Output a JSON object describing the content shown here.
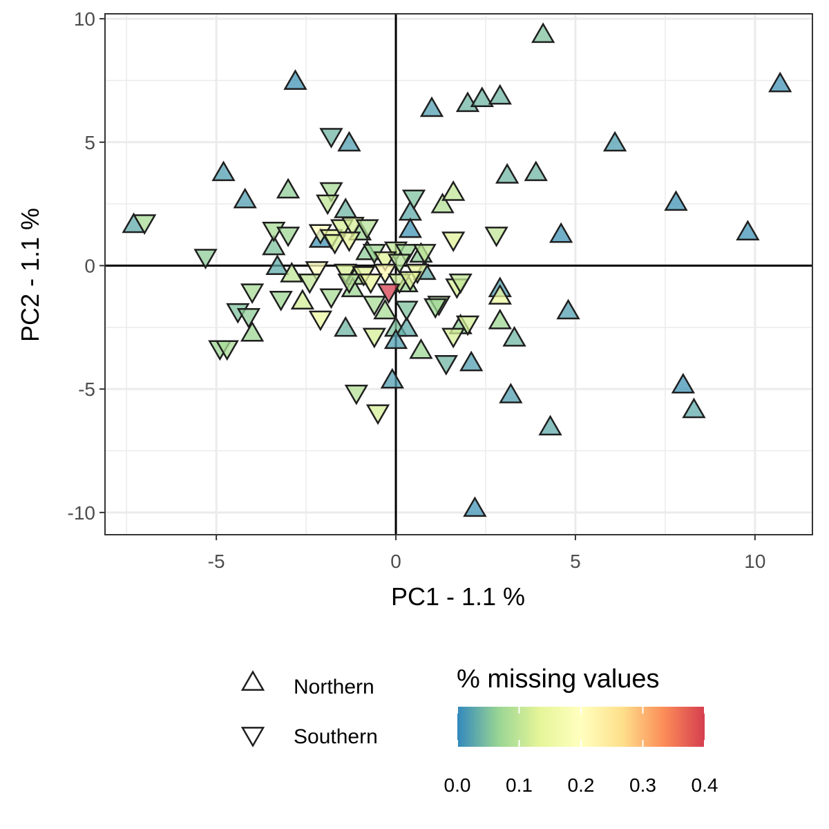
{
  "chart_data": {
    "type": "scatter",
    "xlabel": "PC1 - 1.1 %",
    "ylabel": "PC2 - 1.1 %",
    "xlim": [
      -8.1,
      11.6
    ],
    "ylim": [
      -10.9,
      10.2
    ],
    "x_ticks": [
      -5,
      0,
      5,
      10
    ],
    "y_ticks": [
      10,
      5,
      0,
      -5,
      -10
    ],
    "x_tick_labels": [
      "-5",
      "0",
      "5",
      "10"
    ],
    "y_tick_labels": [
      "10",
      "5",
      "0",
      "-5",
      "-10"
    ],
    "grid": true,
    "reference_lines": [
      {
        "axis": "x",
        "value": 0
      },
      {
        "axis": "y",
        "value": 0
      }
    ],
    "legend": {
      "placement": "bottom",
      "shape_entries": [
        {
          "label": "Northern",
          "shape": "triangle-up"
        },
        {
          "label": "Southern",
          "shape": "triangle-down"
        }
      ],
      "color_title": "% missing values",
      "color_ticks": [
        0.0,
        0.1,
        0.2,
        0.3,
        0.4
      ],
      "color_tick_labels": [
        "0.0",
        "0.1",
        "0.2",
        "0.3",
        "0.4"
      ],
      "color_range": [
        0.0,
        0.4
      ],
      "colors": [
        "#3288bd",
        "#99d594",
        "#e6f598",
        "#ffffbf",
        "#fee08b",
        "#fc8d59",
        "#d53e4f"
      ]
    },
    "series": [
      {
        "name": "Northern",
        "shape": "triangle-up",
        "points": [
          [
            4.1,
            9.3,
            0.05
          ],
          [
            10.7,
            7.3,
            0.01
          ],
          [
            -2.8,
            7.4,
            0.01
          ],
          [
            1.0,
            6.3,
            0.02
          ],
          [
            2.0,
            6.5,
            0.04
          ],
          [
            2.4,
            6.7,
            0.04
          ],
          [
            2.9,
            6.8,
            0.04
          ],
          [
            6.1,
            4.9,
            0.02
          ],
          [
            -1.3,
            4.9,
            0.02
          ],
          [
            -4.8,
            3.7,
            0.02
          ],
          [
            3.1,
            3.6,
            0.04
          ],
          [
            3.9,
            3.7,
            0.04
          ],
          [
            -3.0,
            3.0,
            0.06
          ],
          [
            -4.2,
            2.6,
            0.02
          ],
          [
            7.8,
            2.5,
            0.01
          ],
          [
            1.3,
            2.4,
            0.09
          ],
          [
            1.6,
            2.9,
            0.1
          ],
          [
            -1.4,
            2.2,
            0.04
          ],
          [
            0.4,
            2.1,
            0.03
          ],
          [
            9.8,
            1.3,
            0.01
          ],
          [
            4.6,
            1.2,
            0.01
          ],
          [
            -7.3,
            1.6,
            0.03
          ],
          [
            0.4,
            1.4,
            0.01
          ],
          [
            -2.1,
            1.0,
            0.01
          ],
          [
            -1.0,
            1.3,
            0.07
          ],
          [
            -3.4,
            0.7,
            0.05
          ],
          [
            -0.8,
            0.5,
            0.06
          ],
          [
            0.7,
            0.4,
            0.06
          ],
          [
            -3.3,
            -0.1,
            0.03
          ],
          [
            -2.9,
            -0.4,
            0.1
          ],
          [
            -1.1,
            -0.5,
            0.08
          ],
          [
            0.8,
            -0.3,
            0.03
          ],
          [
            0.3,
            -0.8,
            0.07
          ],
          [
            2.9,
            -1.0,
            0.02
          ],
          [
            -1.2,
            -1.0,
            0.07
          ],
          [
            2.9,
            -1.3,
            0.15
          ],
          [
            4.8,
            -1.9,
            0.02
          ],
          [
            -2.6,
            -1.5,
            0.12
          ],
          [
            -4.0,
            -2.8,
            0.07
          ],
          [
            -1.4,
            -2.6,
            0.04
          ],
          [
            -0.3,
            -1.9,
            0.08
          ],
          [
            0.0,
            -2.6,
            0.05
          ],
          [
            0.3,
            -2.6,
            0.03
          ],
          [
            1.8,
            -2.5,
            0.06
          ],
          [
            2.9,
            -2.3,
            0.07
          ],
          [
            3.3,
            -3.0,
            0.04
          ],
          [
            0.7,
            -3.5,
            0.07
          ],
          [
            0.0,
            -3.1,
            0.02
          ],
          [
            2.1,
            -4.0,
            0.02
          ],
          [
            -0.1,
            -4.7,
            0.02
          ],
          [
            3.2,
            -5.3,
            0.02
          ],
          [
            8.0,
            -4.9,
            0.01
          ],
          [
            8.3,
            -5.9,
            0.03
          ],
          [
            4.3,
            -6.6,
            0.03
          ],
          [
            2.2,
            -9.9,
            0.01
          ]
        ]
      },
      {
        "name": "Southern",
        "shape": "triangle-down",
        "points": [
          [
            -1.8,
            5.3,
            0.04
          ],
          [
            -1.8,
            3.1,
            0.08
          ],
          [
            -1.9,
            2.6,
            0.1
          ],
          [
            0.5,
            2.8,
            0.05
          ],
          [
            -7.0,
            1.8,
            0.08
          ],
          [
            -3.4,
            1.5,
            0.08
          ],
          [
            -3.0,
            1.3,
            0.07
          ],
          [
            -2.1,
            1.4,
            0.2
          ],
          [
            -1.8,
            1.2,
            0.14
          ],
          [
            -1.5,
            1.6,
            0.12
          ],
          [
            -1.2,
            1.7,
            0.12
          ],
          [
            -0.8,
            1.6,
            0.09
          ],
          [
            -1.7,
            1.0,
            0.12
          ],
          [
            -1.3,
            1.1,
            0.14
          ],
          [
            1.6,
            1.1,
            0.13
          ],
          [
            2.8,
            1.3,
            0.1
          ],
          [
            -5.3,
            0.4,
            0.06
          ],
          [
            -0.6,
            0.6,
            0.07
          ],
          [
            0.0,
            0.7,
            0.1
          ],
          [
            0.3,
            0.6,
            0.07
          ],
          [
            0.8,
            0.6,
            0.1
          ],
          [
            -0.3,
            0.3,
            0.13
          ],
          [
            0.1,
            0.2,
            0.09
          ],
          [
            -2.2,
            -0.1,
            0.2
          ],
          [
            -1.4,
            -0.2,
            0.12
          ],
          [
            -0.9,
            -0.3,
            0.13
          ],
          [
            -0.3,
            -0.2,
            0.22
          ],
          [
            0.6,
            -0.2,
            0.14
          ],
          [
            -4.0,
            -1.0,
            0.08
          ],
          [
            -3.2,
            -1.3,
            0.07
          ],
          [
            -2.4,
            -0.6,
            0.1
          ],
          [
            -1.8,
            -1.2,
            0.08
          ],
          [
            -1.3,
            -0.6,
            0.09
          ],
          [
            -0.7,
            -0.6,
            0.14
          ],
          [
            0.1,
            -0.6,
            0.11
          ],
          [
            0.4,
            -0.5,
            0.13
          ],
          [
            1.7,
            -0.8,
            0.12
          ],
          [
            1.8,
            -0.6,
            0.1
          ],
          [
            1.2,
            -1.5,
            0.09
          ],
          [
            -0.2,
            -1.0,
            0.4
          ],
          [
            -0.6,
            -1.5,
            0.08
          ],
          [
            -4.4,
            -1.8,
            0.05
          ],
          [
            -4.1,
            -2.0,
            0.06
          ],
          [
            -2.1,
            -2.1,
            0.15
          ],
          [
            0.3,
            -1.7,
            0.05
          ],
          [
            1.1,
            -1.6,
            0.07
          ],
          [
            2.0,
            -2.3,
            0.12
          ],
          [
            1.6,
            -2.8,
            0.12
          ],
          [
            -0.6,
            -2.8,
            0.12
          ],
          [
            -4.9,
            -3.3,
            0.07
          ],
          [
            -4.7,
            -3.3,
            0.08
          ],
          [
            1.4,
            -3.9,
            0.04
          ],
          [
            -1.1,
            -5.1,
            0.09
          ],
          [
            -0.5,
            -5.9,
            0.12
          ]
        ]
      }
    ]
  }
}
